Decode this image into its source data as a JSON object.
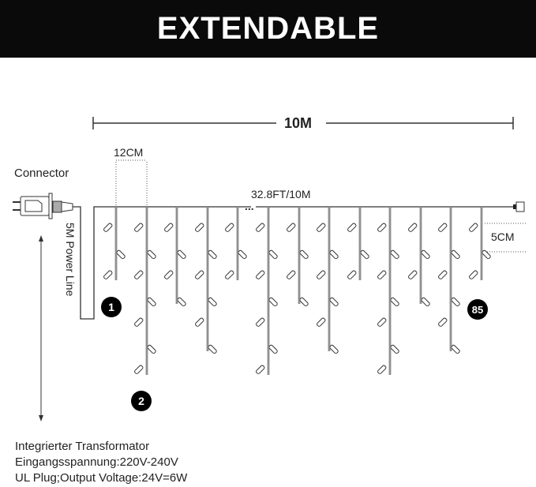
{
  "title": "EXTENDABLE",
  "labels": {
    "total_length": "10M",
    "drop_spacing": "12CM",
    "connector": "Connector",
    "string_length": "32.8FT/10M",
    "bulb_spacing": "5CM",
    "power_line": "5M Power Line",
    "ellipsis": "..."
  },
  "badges": [
    "1",
    "2",
    "85"
  ],
  "specs": [
    "Integrierter Transformator",
    "Eingangsspannung:220V-240V",
    "UL Plug;Output Voltage:24V=6W"
  ]
}
